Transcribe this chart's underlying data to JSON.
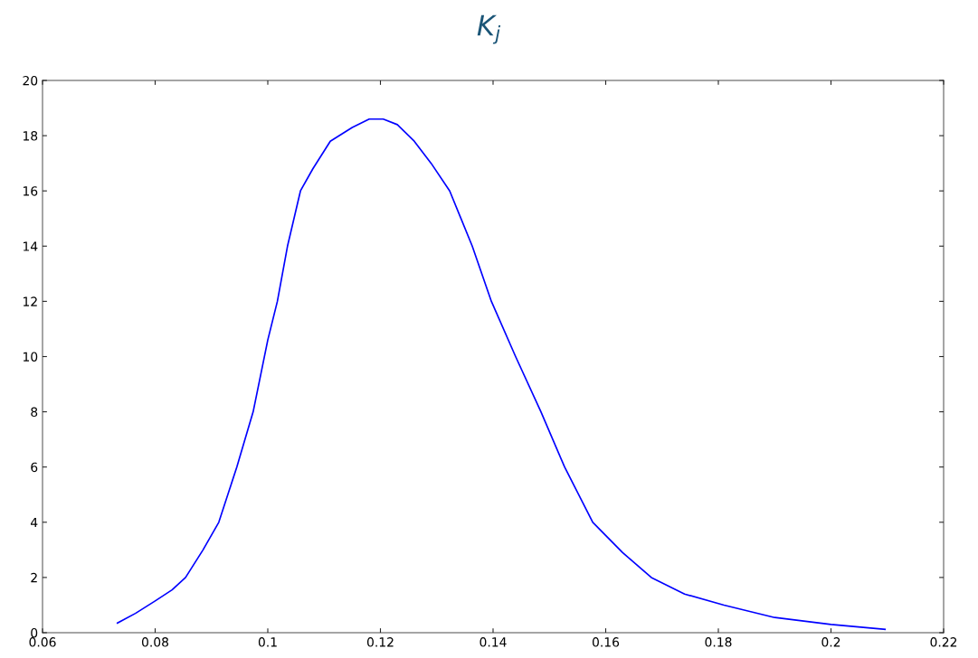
{
  "chart_data": {
    "type": "line",
    "title": "K$_{j}$",
    "x": [
      0.0733,
      0.0765,
      0.08,
      0.083,
      0.0854,
      0.0885,
      0.0913,
      0.0945,
      0.0974,
      0.1,
      0.1017,
      0.1035,
      0.1058,
      0.108,
      0.1111,
      0.115,
      0.118,
      0.1205,
      0.123,
      0.126,
      0.129,
      0.1323,
      0.1363,
      0.1397,
      0.144,
      0.1485,
      0.1527,
      0.1577,
      0.163,
      0.1681,
      0.174,
      0.181,
      0.19,
      0.2,
      0.2096
    ],
    "series": [
      {
        "color": "#0000ff",
        "values": [
          0.35,
          0.7,
          1.15,
          1.55,
          2,
          3,
          4,
          6,
          8,
          10.6,
          12,
          14,
          16,
          16.8,
          17.8,
          18.3,
          18.6,
          18.6,
          18.4,
          17.8,
          17,
          16,
          14,
          12,
          10,
          8,
          6,
          4,
          2.9,
          2,
          1.4,
          1,
          0.55,
          0.3,
          0.12
        ]
      }
    ],
    "xlim": [
      0.06,
      0.22
    ],
    "xticks": [
      0.06,
      0.08,
      0.1,
      0.12,
      0.14,
      0.16,
      0.18,
      0.2,
      0.22
    ],
    "ylim": [
      0,
      20
    ],
    "yticks": [
      0,
      2,
      4,
      6,
      8,
      10,
      12,
      14,
      16,
      18,
      20
    ],
    "grid": false,
    "legend": false,
    "marker": "none",
    "line_style": "solid"
  }
}
